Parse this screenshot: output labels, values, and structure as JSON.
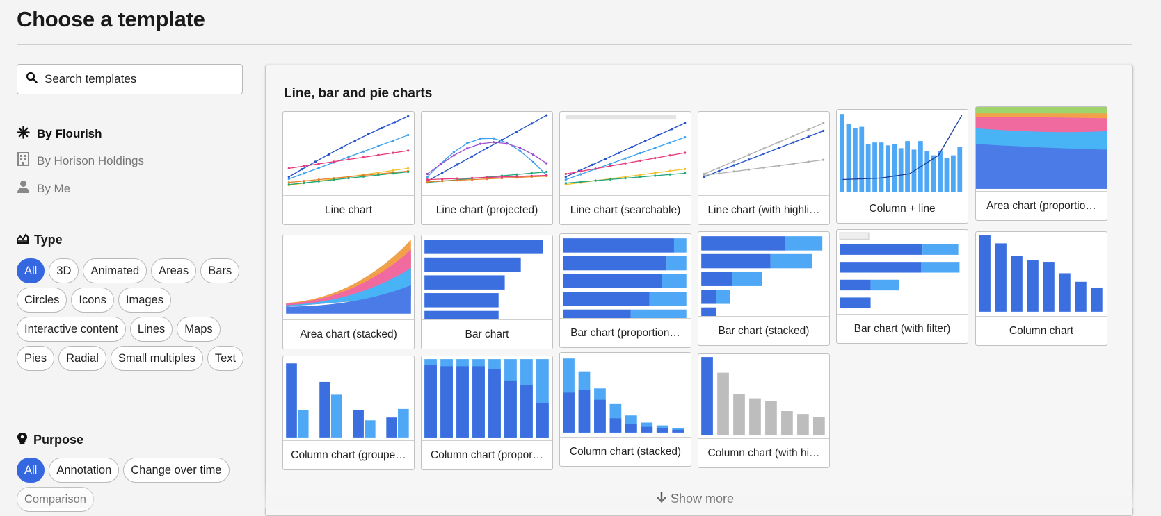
{
  "page_title": "Choose a template",
  "search": {
    "placeholder": "Search templates"
  },
  "sources": [
    {
      "label": "By Flourish",
      "icon": "asterisk-icon",
      "active": true
    },
    {
      "label": "By Horison Holdings",
      "icon": "building-icon",
      "active": false
    },
    {
      "label": "By Me",
      "icon": "person-icon",
      "active": false
    }
  ],
  "type_section": {
    "title": "Type",
    "pills": [
      "All",
      "3D",
      "Animated",
      "Areas",
      "Bars",
      "Circles",
      "Icons",
      "Images",
      "Interactive content",
      "Lines",
      "Maps",
      "Pies",
      "Radial",
      "Small multiples",
      "Text"
    ],
    "selected": "All"
  },
  "purpose_section": {
    "title": "Purpose",
    "pills": [
      "All",
      "Annotation",
      "Change over time",
      "Comparison"
    ],
    "selected": "All"
  },
  "panel": {
    "title": "Line, bar and pie charts",
    "cards": [
      "Line chart",
      "Line chart (projected)",
      "Line chart (searchable)",
      "Line chart (with highli…",
      "Column + line",
      "Area chart (proportio…",
      "Area chart (stacked)",
      "Bar chart",
      "Bar chart (proportion…",
      "Bar chart (stacked)",
      "Bar chart (with filter)",
      "Column chart",
      "Column chart (groupe…",
      "Column chart (propor…",
      "Column chart (stacked)",
      "Column chart (with hi…"
    ],
    "show_more": "Show more"
  },
  "colors": {
    "accent": "#3567e0",
    "series_blue": "#3b6fe0",
    "series_light": "#4fa8f5",
    "grey": "#bdbdbd"
  }
}
